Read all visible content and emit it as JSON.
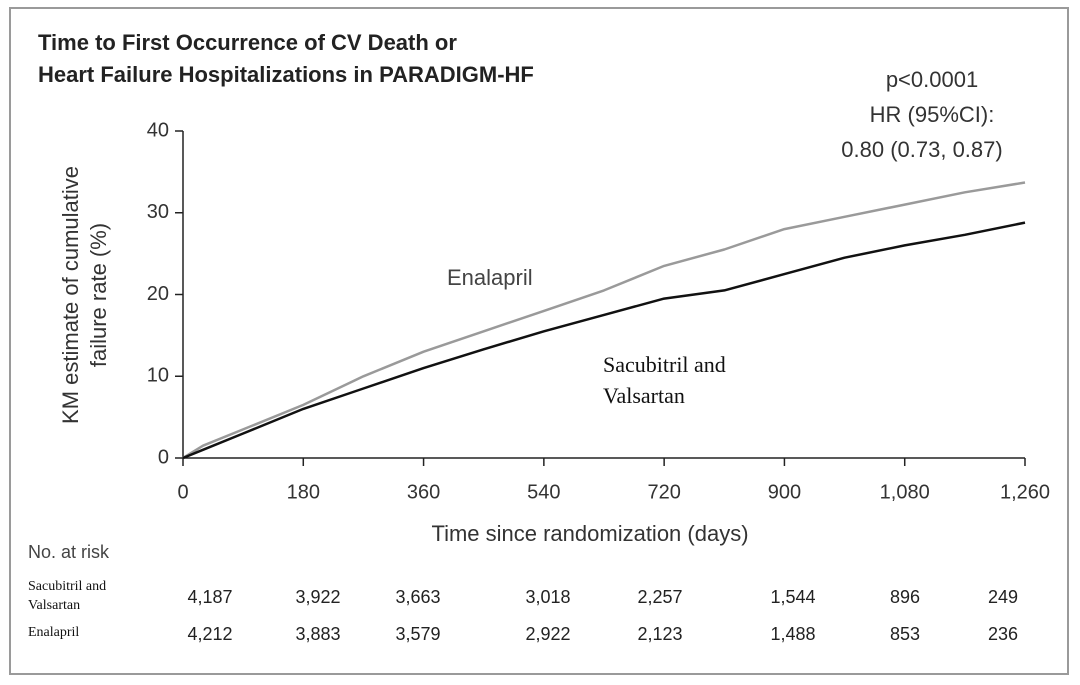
{
  "chart_data": {
    "type": "line",
    "title": [
      "Time to First Occurrence of CV Death or",
      "Heart Failure Hospitalizations in PARADIGM-HF"
    ],
    "annotations": [
      "p<0.0001",
      "HR (95%CI):",
      "0.80 (0.73, 0.87)"
    ],
    "x_label": "Time since randomization (days)",
    "y_label": [
      "KM estimate of cumulative",
      "failure rate (%)"
    ],
    "x": [
      0,
      30,
      90,
      180,
      270,
      360,
      450,
      540,
      630,
      720,
      810,
      900,
      990,
      1080,
      1170,
      1260
    ],
    "series": [
      {
        "name": "Enalapril",
        "color": "#9a9a9a",
        "values": [
          0,
          1.5,
          3.5,
          6.5,
          10,
          13,
          15.5,
          18,
          20.5,
          23.5,
          25.5,
          28,
          29.5,
          31,
          32.5,
          33.7
        ]
      },
      {
        "name": "Sacubitril and Valsartan",
        "color": "#111111",
        "values": [
          0,
          1,
          3,
          6,
          8.5,
          11,
          13.3,
          15.5,
          17.5,
          19.5,
          20.5,
          22.5,
          24.5,
          26,
          27.3,
          28.8
        ]
      }
    ],
    "xlim": [
      0,
      1260
    ],
    "xticks": [
      0,
      180,
      360,
      540,
      720,
      900,
      {
        "value": 1080,
        "label": "1,080"
      },
      {
        "value": 1260,
        "label": "1,260"
      }
    ],
    "ylim": [
      0,
      40
    ],
    "yticks": [
      0,
      10,
      20,
      30,
      40
    ],
    "grid": false
  },
  "risk_table": {
    "title": "No. at risk",
    "rows": [
      {
        "name": "Sacubitril and Valsartan",
        "values": [
          "4,187",
          "3,922",
          "3,663",
          "3,018",
          "2,257",
          "1,544",
          "896",
          "249"
        ]
      },
      {
        "name": "Enalapril",
        "values": [
          "4,212",
          "3,883",
          "3,579",
          "2,922",
          "2,123",
          "1,488",
          "853",
          "236"
        ]
      }
    ]
  }
}
